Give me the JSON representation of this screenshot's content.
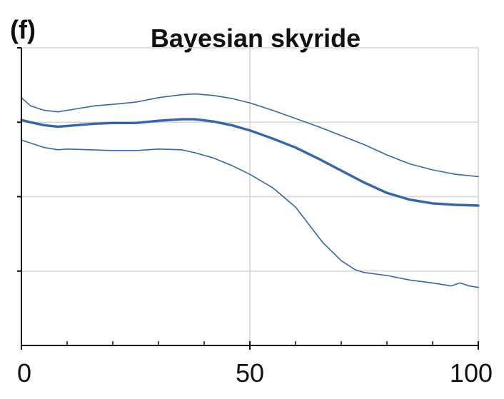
{
  "chart_data": {
    "type": "line",
    "panel_label": "(f)",
    "title": "Bayesian skyride",
    "xlabel": "",
    "ylabel": "",
    "xlim": [
      0,
      100
    ],
    "ylim": [
      0,
      4
    ],
    "x_ticks": [
      0,
      50,
      100
    ],
    "x_tick_labels": [
      "0",
      "50",
      "100"
    ],
    "y_ticks": [
      1,
      2,
      3,
      4
    ],
    "y_tick_labels": [
      "",
      "",
      "",
      ""
    ],
    "x_minor_ticks": [
      10,
      20,
      30,
      40,
      60,
      70,
      80,
      90
    ],
    "grid": true,
    "legend": "none",
    "line_color": "#3366b0",
    "grid_color": "#d6d6d6",
    "series": [
      {
        "x": [
          0,
          2,
          5,
          8,
          12,
          16,
          20,
          25,
          30,
          35,
          38,
          42,
          46,
          50,
          55,
          60,
          65,
          70,
          75,
          80,
          85,
          90,
          95,
          100
        ],
        "values": [
          3.33,
          3.22,
          3.16,
          3.14,
          3.18,
          3.22,
          3.24,
          3.27,
          3.33,
          3.37,
          3.38,
          3.36,
          3.32,
          3.26,
          3.16,
          3.05,
          2.94,
          2.82,
          2.7,
          2.56,
          2.44,
          2.36,
          2.3,
          2.27
        ]
      },
      {
        "x": [
          0,
          2,
          5,
          8,
          12,
          16,
          20,
          25,
          30,
          35,
          38,
          42,
          46,
          50,
          55,
          60,
          65,
          70,
          75,
          80,
          85,
          90,
          95,
          100
        ],
        "values": [
          3.03,
          3.0,
          2.96,
          2.94,
          2.96,
          2.98,
          2.99,
          2.99,
          3.02,
          3.04,
          3.04,
          3.01,
          2.96,
          2.89,
          2.78,
          2.66,
          2.51,
          2.35,
          2.19,
          2.05,
          1.96,
          1.91,
          1.89,
          1.88
        ]
      },
      {
        "x": [
          0,
          2,
          5,
          8,
          10,
          15,
          20,
          25,
          30,
          35,
          38,
          42,
          46,
          50,
          55,
          60,
          63,
          66,
          70,
          73,
          75,
          80,
          85,
          90,
          94,
          96,
          98,
          100
        ],
        "values": [
          2.76,
          2.72,
          2.66,
          2.63,
          2.64,
          2.63,
          2.62,
          2.62,
          2.64,
          2.63,
          2.59,
          2.52,
          2.42,
          2.3,
          2.12,
          1.86,
          1.62,
          1.38,
          1.14,
          1.02,
          0.98,
          0.94,
          0.88,
          0.84,
          0.8,
          0.84,
          0.8,
          0.78
        ]
      }
    ]
  }
}
